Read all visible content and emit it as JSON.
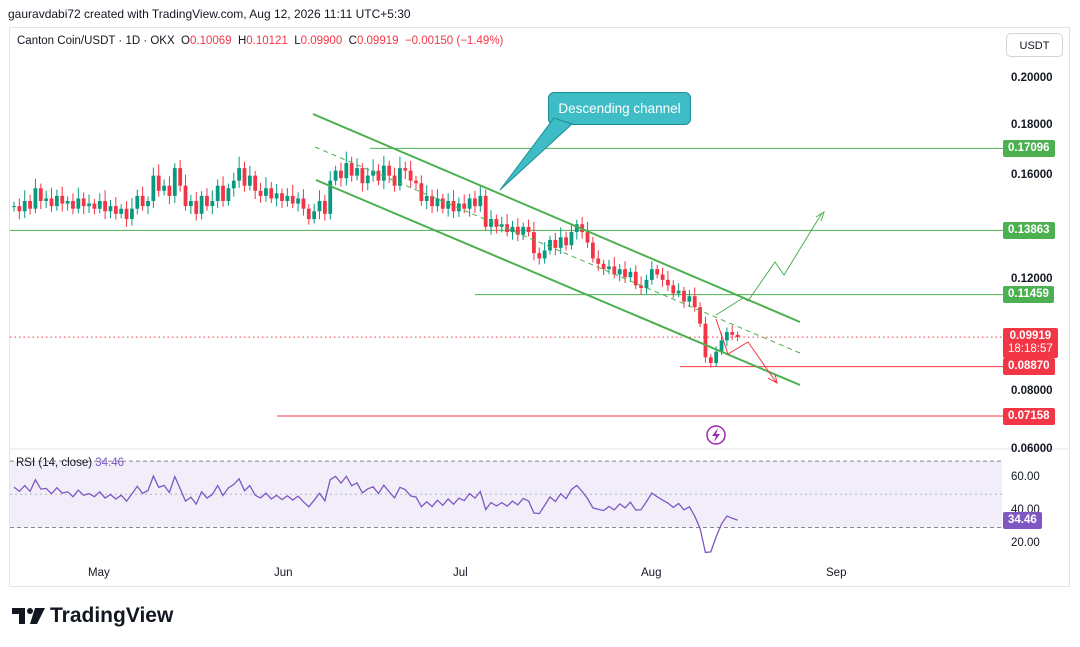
{
  "header": {
    "credit": "gauravdabi72 created with TradingView.com, Aug 12, 2026 11:11 UTC+5:30"
  },
  "legend": {
    "symbol": "Canton Coin/USDT · 1D · OKX",
    "o_label": "O",
    "o": "0.10069",
    "h_label": "H",
    "h": "0.10121",
    "l_label": "L",
    "l": "0.09900",
    "c_label": "C",
    "c": "0.09919",
    "change": "−0.00150 (−1.49%)"
  },
  "currency_button": "USDT",
  "annotation": {
    "text": "Descending channel"
  },
  "colors": {
    "up": "#089981",
    "down": "#f23645",
    "green_level": "#4caf50",
    "red_level": "#f23645",
    "rsi": "#7e57c2",
    "callout": "#3ebdc6"
  },
  "chart_data": [
    {
      "type": "candlestick",
      "title": "Canton Coin/USDT · 1D · OKX",
      "ylabel": "USDT",
      "y_ticks": [
        "0.20000",
        "0.18000",
        "0.16000",
        "0.12000",
        "0.08000",
        "0.06000"
      ],
      "ylim": [
        0.05,
        0.2
      ],
      "x_ticks": [
        "May",
        "Jun",
        "Jul",
        "Aug",
        "Sep"
      ],
      "price_levels": [
        {
          "label": "0.17096",
          "value": 0.17096,
          "color": "green"
        },
        {
          "label": "0.13863",
          "value": 0.13863,
          "color": "green"
        },
        {
          "label": "0.11459",
          "value": 0.11459,
          "color": "green"
        },
        {
          "label": "0.08870",
          "value": 0.0887,
          "color": "red"
        },
        {
          "label": "0.07158",
          "value": 0.07158,
          "color": "red"
        }
      ],
      "last_price": {
        "label": "0.09919",
        "countdown": "18:18:57",
        "value": 0.09919
      },
      "closes": [
        0.148,
        0.146,
        0.15,
        0.147,
        0.155,
        0.15,
        0.151,
        0.148,
        0.152,
        0.149,
        0.15,
        0.147,
        0.151,
        0.148,
        0.149,
        0.147,
        0.15,
        0.146,
        0.148,
        0.145,
        0.147,
        0.143,
        0.147,
        0.152,
        0.148,
        0.15,
        0.16,
        0.154,
        0.156,
        0.152,
        0.163,
        0.156,
        0.148,
        0.15,
        0.145,
        0.152,
        0.148,
        0.15,
        0.156,
        0.15,
        0.155,
        0.158,
        0.163,
        0.156,
        0.16,
        0.154,
        0.152,
        0.155,
        0.151,
        0.153,
        0.15,
        0.152,
        0.149,
        0.151,
        0.147,
        0.143,
        0.146,
        0.15,
        0.145,
        0.158,
        0.162,
        0.159,
        0.165,
        0.16,
        0.163,
        0.157,
        0.16,
        0.162,
        0.158,
        0.164,
        0.16,
        0.156,
        0.163,
        0.162,
        0.158,
        0.157,
        0.15,
        0.152,
        0.148,
        0.151,
        0.147,
        0.15,
        0.146,
        0.149,
        0.147,
        0.151,
        0.148,
        0.152,
        0.14,
        0.143,
        0.14,
        0.141,
        0.138,
        0.14,
        0.137,
        0.14,
        0.138,
        0.13,
        0.128,
        0.131,
        0.135,
        0.132,
        0.136,
        0.133,
        0.138,
        0.141,
        0.138,
        0.134,
        0.128,
        0.126,
        0.124,
        0.125,
        0.122,
        0.124,
        0.121,
        0.123,
        0.118,
        0.117,
        0.12,
        0.124,
        0.122,
        0.12,
        0.118,
        0.115,
        0.116,
        0.112,
        0.114,
        0.11,
        0.104,
        0.092,
        0.09,
        0.094,
        0.098,
        0.101,
        0.1,
        0.0992
      ],
      "rsi": {
        "label": "RSI (14, close)",
        "value_label": "34.46",
        "value": 34.46,
        "ticks": [
          "60.00",
          "40.00",
          "20.00"
        ],
        "bands": [
          70,
          50,
          30
        ]
      }
    }
  ],
  "brand": "TradingView"
}
